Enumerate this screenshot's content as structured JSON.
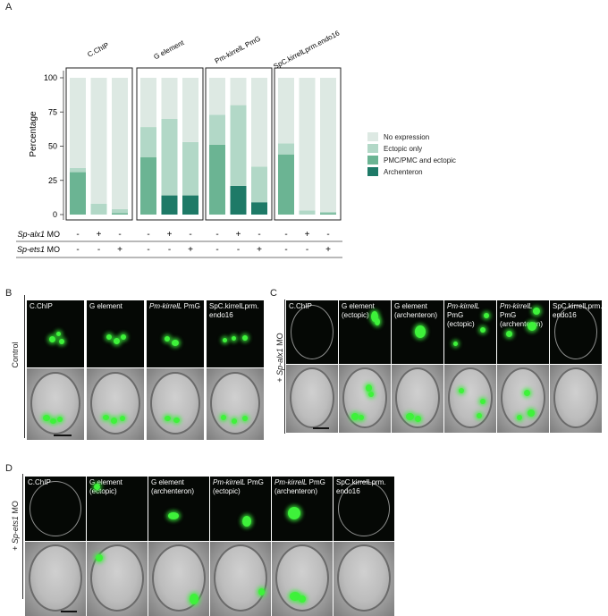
{
  "panelA": {
    "letter": "A",
    "chart_data": {
      "type": "bar",
      "ylabel": "Percentage",
      "ylim": [
        0,
        100
      ],
      "yticks": [
        "0",
        "25",
        "50",
        "75",
        "100"
      ],
      "facets": [
        {
          "title": "C.ChIP",
          "bars": [
            {
              "archenteron": 0,
              "pmc_ectopic": 31,
              "ectopic_only": 3
            },
            {
              "archenteron": 0,
              "pmc_ectopic": 0,
              "ectopic_only": 8
            },
            {
              "archenteron": 0,
              "pmc_ectopic": 1,
              "ectopic_only": 3
            }
          ]
        },
        {
          "title": "G element",
          "bars": [
            {
              "archenteron": 0,
              "pmc_ectopic": 42,
              "ectopic_only": 22
            },
            {
              "archenteron": 14,
              "pmc_ectopic": 0,
              "ectopic_only": 56
            },
            {
              "archenteron": 14,
              "pmc_ectopic": 0,
              "ectopic_only": 39
            }
          ]
        },
        {
          "title": "Pm-kirrelL PmG",
          "bars": [
            {
              "archenteron": 0,
              "pmc_ectopic": 51,
              "ectopic_only": 22
            },
            {
              "archenteron": 21,
              "pmc_ectopic": 0,
              "ectopic_only": 59
            },
            {
              "archenteron": 9,
              "pmc_ectopic": 0,
              "ectopic_only": 26
            }
          ]
        },
        {
          "title": "SpC.kirrelLprm.endo16",
          "bars": [
            {
              "archenteron": 0,
              "pmc_ectopic": 44,
              "ectopic_only": 8
            },
            {
              "archenteron": 0,
              "pmc_ectopic": 0,
              "ectopic_only": 3
            },
            {
              "archenteron": 0,
              "pmc_ectopic": 1,
              "ectopic_only": 1
            }
          ]
        }
      ],
      "legend": [
        {
          "label": "No expression",
          "color": "#dde9e3"
        },
        {
          "label": "Ectopic only",
          "color": "#b2d8c7"
        },
        {
          "label": "PMC/PMC and ectopic",
          "color": "#6bb493"
        },
        {
          "label": "Archenteron",
          "color": "#1e7a67"
        }
      ],
      "conditions": [
        {
          "label_italic": "Sp-alx1",
          "label_rest": " MO",
          "values": [
            "-",
            "+",
            "-"
          ]
        },
        {
          "label_italic": "Sp-ets1",
          "label_rest": " MO",
          "values": [
            "-",
            "-",
            "+"
          ]
        }
      ]
    }
  },
  "panelB": {
    "letter": "B",
    "side_label": "Control",
    "tiles": [
      {
        "label": "C.ChIP"
      },
      {
        "label": "G element"
      },
      {
        "label_italic": "Pm-kirrelL",
        "label_rest": " PmG"
      },
      {
        "label": "SpC.kirrelLprm.",
        "label2": "endo16"
      }
    ]
  },
  "panelC": {
    "letter": "C",
    "side_label_prefix": "+ ",
    "side_label_italic": "Sp-alx1",
    "side_label_rest": " MO",
    "tiles": [
      {
        "label": "C.ChIP"
      },
      {
        "label": "G element",
        "label2": "(ectopic)"
      },
      {
        "label": "G element",
        "label2": "(archenteron)"
      },
      {
        "label_italic": "Pm-kirrelL",
        "label_rest": " PmG",
        "label2": "(ectopic)"
      },
      {
        "label_italic": "Pm-kirrelL",
        "label_rest": " PmG",
        "label2": "(archenteron)"
      },
      {
        "label": "SpC.kirrelLprm.",
        "label2": "endo16"
      }
    ]
  },
  "panelD": {
    "letter": "D",
    "side_label_prefix": "+ ",
    "side_label_italic": "Sp-ets1",
    "side_label_rest": " MO",
    "tiles": [
      {
        "label": "C.ChIP"
      },
      {
        "label": "G element",
        "label2": "(ectopic)"
      },
      {
        "label": "G element",
        "label2": "(archenteron)"
      },
      {
        "label_italic": "Pm-kirrelL",
        "label_rest": " PmG",
        "label2": "(ectopic)"
      },
      {
        "label_italic": "Pm-kirrelL",
        "label_rest": " PmG",
        "label2": "(archenteron)"
      },
      {
        "label": "SpC.kirrelLprm.",
        "label2": "endo16"
      }
    ]
  }
}
